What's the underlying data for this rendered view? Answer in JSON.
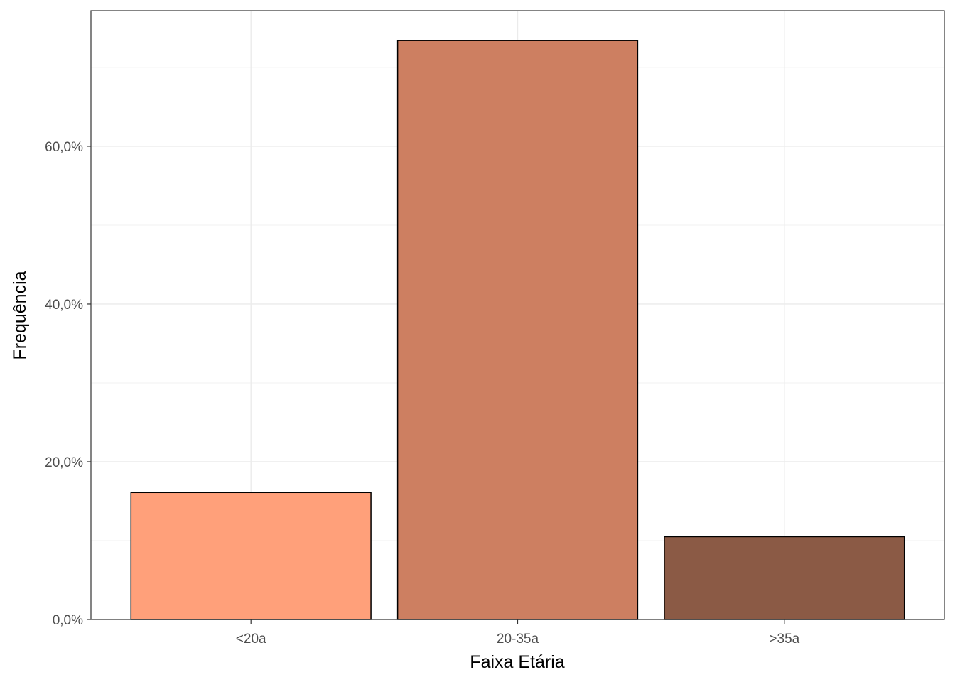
{
  "chart_data": {
    "type": "bar",
    "categories": [
      "<20a",
      "20-35a",
      ">35a"
    ],
    "values": [
      16.1,
      73.4,
      10.5
    ],
    "colors": [
      "#FFA07A",
      "#CD7F61",
      "#8B5A45"
    ],
    "xlabel": "Faixa Etária",
    "ylabel": "Frequência",
    "ylim": [
      0,
      77.2
    ],
    "yticks": [
      0,
      20,
      40,
      60
    ],
    "ytick_labels": [
      "0,0%",
      "20,0%",
      "40,0%",
      "60,0%"
    ],
    "grid": true,
    "legend": "none"
  }
}
